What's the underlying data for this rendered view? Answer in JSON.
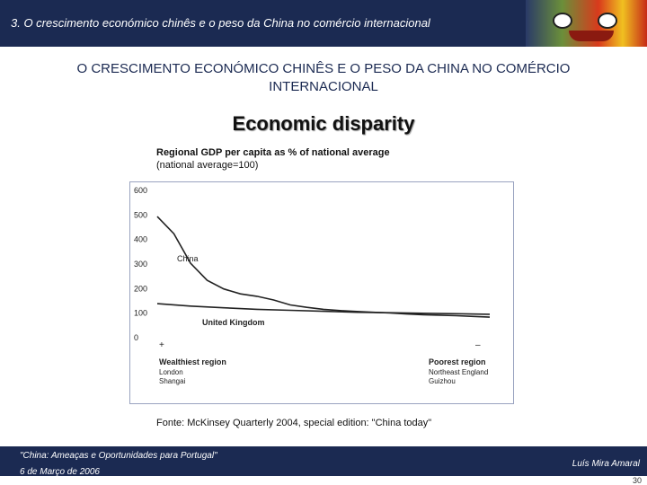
{
  "header": {
    "title": "3. O crescimento económico chinês e o peso da China no comércio internacional",
    "decor": "mask-image"
  },
  "page_title": "O CRESCIMENTO ECONÓMICO CHINÊS E O PESO DA CHINA NO COMÉRCIO INTERNACIONAL",
  "chart_data": {
    "type": "line",
    "title": "Economic disparity",
    "subtitle": "Regional GDP per capita as % of national average",
    "subtitle_note": "(national average=100)",
    "ylim": [
      0,
      600
    ],
    "yticks": [
      "0",
      "100",
      "200",
      "300",
      "400",
      "500",
      "600"
    ],
    "grid": false,
    "series": [
      {
        "name": "China",
        "color": "#222222",
        "values": [
          [
            0,
            490
          ],
          [
            5,
            420
          ],
          [
            10,
            300
          ],
          [
            15,
            230
          ],
          [
            20,
            195
          ],
          [
            25,
            175
          ],
          [
            30,
            165
          ],
          [
            35,
            150
          ],
          [
            40,
            130
          ],
          [
            45,
            120
          ],
          [
            50,
            112
          ],
          [
            55,
            107
          ],
          [
            60,
            103
          ],
          [
            65,
            100
          ],
          [
            70,
            97
          ],
          [
            75,
            93
          ],
          [
            80,
            90
          ],
          [
            85,
            88
          ],
          [
            90,
            86
          ],
          [
            95,
            83
          ],
          [
            100,
            80
          ]
        ]
      },
      {
        "name": "United Kingdom",
        "color": "#222222",
        "values": [
          [
            0,
            135
          ],
          [
            10,
            125
          ],
          [
            20,
            118
          ],
          [
            30,
            112
          ],
          [
            40,
            108
          ],
          [
            50,
            104
          ],
          [
            60,
            100
          ],
          [
            70,
            98
          ],
          [
            80,
            96
          ],
          [
            90,
            94
          ],
          [
            100,
            92
          ]
        ]
      }
    ],
    "x_end_labels": {
      "left": {
        "symbol": "+",
        "heading": "Wealthiest region",
        "lines": [
          "London",
          "Shangai"
        ]
      },
      "right": {
        "symbol": "–",
        "heading": "Poorest region",
        "lines": [
          "Northeast England",
          "Guizhou"
        ]
      }
    }
  },
  "source": "Fonte: McKinsey Quarterly 2004, special edition: \"China today\"",
  "footer": {
    "left": "\"China: Ameaças e Oportunidades para Portugal\"",
    "date": "6 de Março de 2006",
    "right": "Luís Mira Amaral",
    "page": "30"
  }
}
